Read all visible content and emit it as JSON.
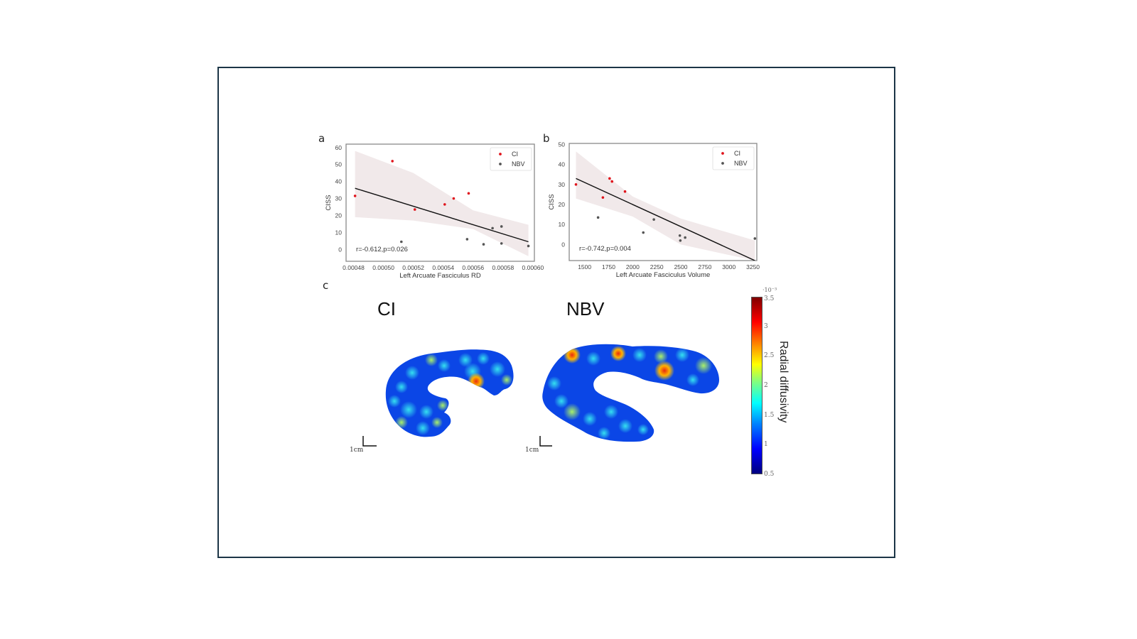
{
  "panels": {
    "a": {
      "letter": "a"
    },
    "b": {
      "letter": "b"
    },
    "c": {
      "letter": "c",
      "labels": {
        "left": "CI",
        "right": "NBV"
      },
      "scale_bar": "1cm"
    }
  },
  "colorbar": {
    "title": "Radial diffusivity",
    "exponent": "·10⁻³",
    "ticks": [
      "3.5",
      "3",
      "2.5",
      "2",
      "1.5",
      "1",
      "0.5"
    ],
    "colormap": "jet",
    "range": [
      0.5,
      3.5
    ]
  },
  "chart_data": [
    {
      "type": "scatter",
      "panel": "a",
      "title": "",
      "xlabel": "Left Arcuate Fasciculus RD",
      "ylabel": "CISS",
      "xlim": [
        0.000475,
        0.000601
      ],
      "ylim": [
        -7,
        62
      ],
      "xticks": [
        "0.00048",
        "0.00050",
        "0.00052",
        "0.00054",
        "0.00056",
        "0.00058",
        "0.00060"
      ],
      "yticks": [
        "0",
        "10",
        "20",
        "30",
        "40",
        "50",
        "60"
      ],
      "grid": false,
      "legend": {
        "position": "upper right",
        "entries": [
          "CI",
          "NBV"
        ]
      },
      "annotation": "r=-0.612,p=0.026",
      "series": [
        {
          "name": "CI",
          "color": "#e0141c",
          "points": [
            [
              0.000481,
              31.5
            ],
            [
              0.000506,
              52
            ],
            [
              0.000521,
              23.5
            ],
            [
              0.000541,
              26.5
            ],
            [
              0.000547,
              30
            ],
            [
              0.000557,
              33
            ]
          ]
        },
        {
          "name": "NBV",
          "color": "#555555",
          "points": [
            [
              0.000512,
              4.5
            ],
            [
              0.000556,
              6
            ],
            [
              0.000567,
              3
            ],
            [
              0.000573,
              12.5
            ],
            [
              0.000579,
              13.5
            ],
            [
              0.000579,
              3.5
            ],
            [
              0.000597,
              2
            ]
          ]
        }
      ],
      "fit_line": {
        "x": [
          0.000481,
          0.000597
        ],
        "y": [
          36,
          4.5
        ],
        "color": "#111111"
      },
      "confidence_band": {
        "x": [
          0.000481,
          0.00052,
          0.00056,
          0.000597
        ],
        "upper": [
          58,
          45,
          23,
          14.5
        ],
        "lower": [
          19,
          17,
          12,
          -4
        ],
        "color": "#f1e9ea"
      }
    },
    {
      "type": "scatter",
      "panel": "b",
      "title": "",
      "xlabel": "Left Arcuate Fasciculus Volume",
      "ylabel": "CISS",
      "xlim": [
        1340,
        3290
      ],
      "ylim": [
        -8,
        50.5
      ],
      "xticks": [
        "1500",
        "1750",
        "2000",
        "2250",
        "2500",
        "2750",
        "3000",
        "3250"
      ],
      "yticks": [
        "0",
        "10",
        "20",
        "30",
        "40",
        "50"
      ],
      "grid": false,
      "legend": {
        "position": "upper right",
        "entries": [
          "CI",
          "NBV"
        ]
      },
      "annotation": "r=-0.742,p=0.004",
      "series": [
        {
          "name": "CI",
          "color": "#e0141c",
          "points": [
            [
              1410,
              30
            ],
            [
              1690,
              23.5
            ],
            [
              1760,
              33
            ],
            [
              1785,
              31.5
            ],
            [
              1920,
              26.5
            ]
          ]
        },
        {
          "name": "NBV",
          "color": "#555555",
          "points": [
            [
              1640,
              13.5
            ],
            [
              2110,
              6
            ],
            [
              2220,
              12.5
            ],
            [
              2490,
              4.5
            ],
            [
              2495,
              2
            ],
            [
              2545,
              3.5
            ],
            [
              3270,
              3
            ]
          ]
        }
      ],
      "fit_line": {
        "x": [
          1410,
          3270
        ],
        "y": [
          33,
          -8
        ],
        "color": "#111111"
      },
      "confidence_band": {
        "x": [
          1410,
          2000,
          2500,
          3270
        ],
        "upper": [
          46.5,
          24,
          13,
          2
        ],
        "lower": [
          23,
          14,
          0,
          -8
        ],
        "color": "#f1e9ea"
      }
    }
  ]
}
